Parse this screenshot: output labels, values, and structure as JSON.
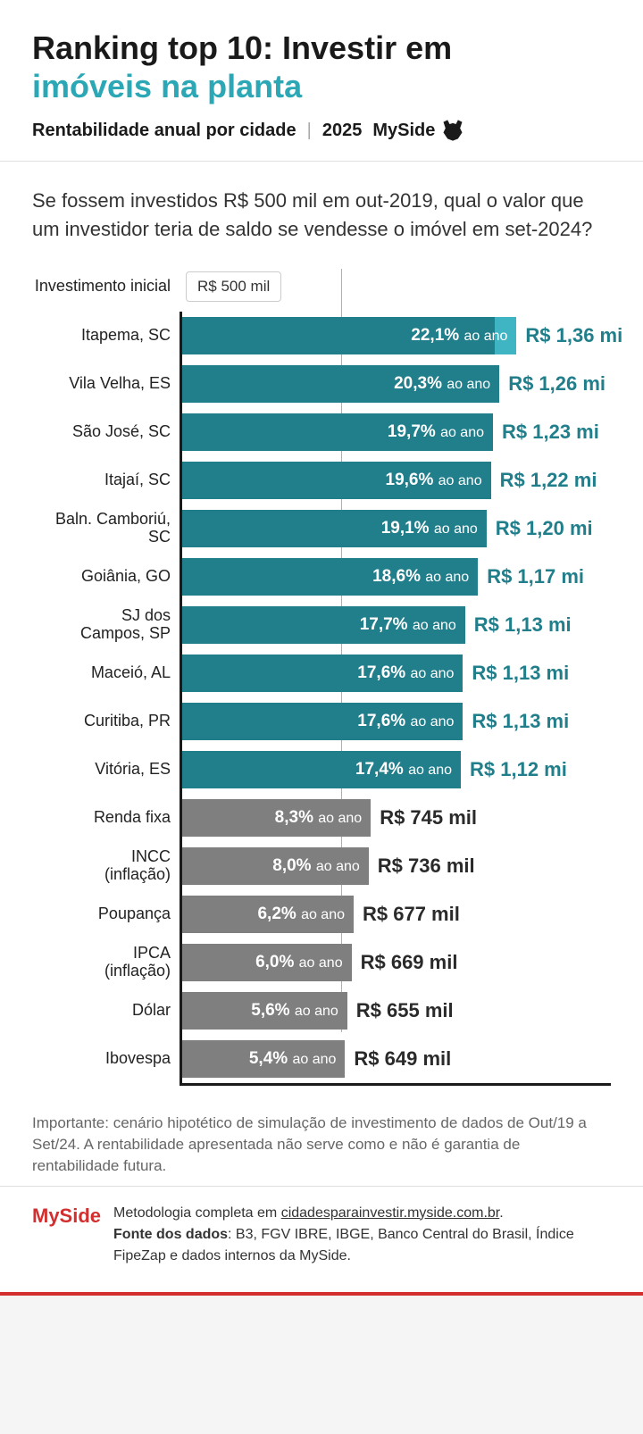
{
  "header": {
    "title_line1": "Ranking top 10: Investir em",
    "title_line2": "imóveis na planta",
    "subtitle": "Rentabilidade anual por cidade",
    "year": "2025",
    "brand": "MySide"
  },
  "content": {
    "question": "Se fossem investidos R$ 500 mil em out-2019, qual o valor que um investidor teria de saldo se vendesse o imóvel em set-2024?",
    "initial_label": "Investimento inicial",
    "initial_value": "R$ 500 mil"
  },
  "chart": {
    "type": "bar-horizontal",
    "max_width_pct": 100,
    "baseline_pct": 36.8,
    "bar_colors": {
      "city": "#217e8b",
      "city_light": "#3fb4c3",
      "bench": "#7f7f7f"
    },
    "value_colors": {
      "city": "#217e8b",
      "bench": "#2a2a2a"
    },
    "rows": [
      {
        "label": "Itapema, SC",
        "pct": "22,1%",
        "unit": "ao ano",
        "value": "R$ 1,36 mi",
        "bar_pct": 78,
        "light_ext_pct": 5,
        "type": "city"
      },
      {
        "label": "Vila Velha, ES",
        "pct": "20,3%",
        "unit": "ao ano",
        "value": "R$ 1,26 mi",
        "bar_pct": 74,
        "light_ext_pct": 0,
        "type": "city"
      },
      {
        "label": "São José, SC",
        "pct": "19,7%",
        "unit": "ao ano",
        "value": "R$ 1,23 mi",
        "bar_pct": 72.5,
        "light_ext_pct": 0,
        "type": "city"
      },
      {
        "label": "Itajaí, SC",
        "pct": "19,6%",
        "unit": "ao ano",
        "value": "R$ 1,22 mi",
        "bar_pct": 72,
        "light_ext_pct": 0,
        "type": "city"
      },
      {
        "label": "Baln. Camboriú, SC",
        "pct": "19,1%",
        "unit": "ao ano",
        "value": "R$ 1,20 mi",
        "bar_pct": 71,
        "light_ext_pct": 0,
        "type": "city",
        "two_line": true
      },
      {
        "label": "Goiânia, GO",
        "pct": "18,6%",
        "unit": "ao ano",
        "value": "R$ 1,17 mi",
        "bar_pct": 69,
        "light_ext_pct": 0,
        "type": "city"
      },
      {
        "label": "SJ dos Campos, SP",
        "pct": "17,7%",
        "unit": "ao ano",
        "value": "R$ 1,13 mi",
        "bar_pct": 66,
        "light_ext_pct": 0,
        "type": "city",
        "two_line": true
      },
      {
        "label": "Maceió, AL",
        "pct": "17,6%",
        "unit": "ao ano",
        "value": "R$ 1,13 mi",
        "bar_pct": 65.5,
        "light_ext_pct": 0,
        "type": "city"
      },
      {
        "label": "Curitiba, PR",
        "pct": "17,6%",
        "unit": "ao ano",
        "value": "R$ 1,13 mi",
        "bar_pct": 65.5,
        "light_ext_pct": 0,
        "type": "city"
      },
      {
        "label": "Vitória, ES",
        "pct": "17,4%",
        "unit": "ao ano",
        "value": "R$ 1,12 mi",
        "bar_pct": 65,
        "light_ext_pct": 0,
        "type": "city"
      },
      {
        "label": "Renda fixa",
        "pct": "8,3%",
        "unit": "ao ano",
        "value": "R$ 745 mil",
        "bar_pct": 44,
        "light_ext_pct": 0,
        "type": "bench"
      },
      {
        "label": "INCC (inflação)",
        "pct": "8,0%",
        "unit": "ao ano",
        "value": "R$ 736 mil",
        "bar_pct": 43.5,
        "light_ext_pct": 0,
        "type": "bench",
        "two_line": true
      },
      {
        "label": "Poupança",
        "pct": "6,2%",
        "unit": "ao ano",
        "value": "R$ 677 mil",
        "bar_pct": 40,
        "light_ext_pct": 0,
        "type": "bench"
      },
      {
        "label": "IPCA (inflação)",
        "pct": "6,0%",
        "unit": "ao ano",
        "value": "R$ 669 mil",
        "bar_pct": 39.5,
        "light_ext_pct": 0,
        "type": "bench",
        "two_line": true
      },
      {
        "label": "Dólar",
        "pct": "5,6%",
        "unit": "ao ano",
        "value": "R$ 655 mil",
        "bar_pct": 38.5,
        "light_ext_pct": 0,
        "type": "bench"
      },
      {
        "label": "Ibovespa",
        "pct": "5,4%",
        "unit": "ao ano",
        "value": "R$ 649 mil",
        "bar_pct": 38,
        "light_ext_pct": 0,
        "type": "bench"
      }
    ]
  },
  "disclaimer": "Importante: cenário hipotético de simulação de investimento de dados de Out/19 a Set/24. A rentabilidade apresentada não serve como e não é garantia de rentabilidade futura.",
  "footer": {
    "brand": "MySide",
    "methodology_prefix": "Metodologia completa em ",
    "methodology_link": "cidadesparainvestir.myside.com.br",
    "source_label": "Fonte dos dados",
    "source_text": ": B3, FGV IBRE, IBGE, Banco Central do Brasil, Índice FipeZap e dados internos da MySide."
  }
}
